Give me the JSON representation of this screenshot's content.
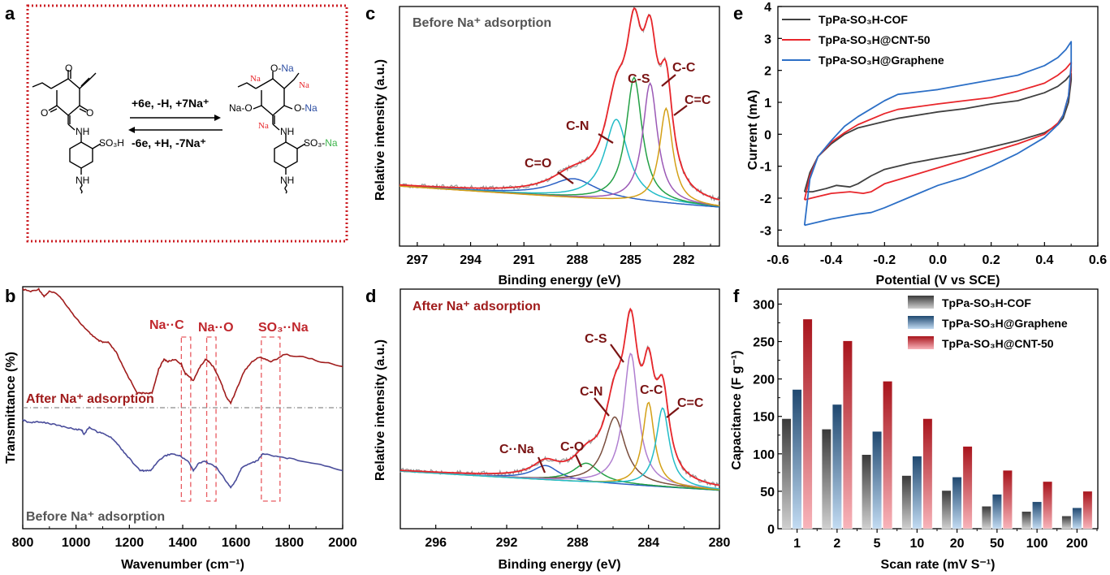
{
  "panels": {
    "a": {
      "letter": "a",
      "forward": "+6e, -H, +7Na⁺",
      "reverse": "-6e, +H, -7Na⁺",
      "left_labels": {
        "o_top": "O",
        "o_left": "O",
        "o_right": "O",
        "nh": "NH",
        "so3h": "SO₃H",
        "nh_bottom": "NH"
      },
      "right_labels": {
        "o_na_top": "O-Na",
        "na_left": "Na",
        "na_right": "Na",
        "na_o": "Na-O",
        "o_na": "O-Na",
        "na_mid": "Na",
        "nh": "NH",
        "so3": "SO₃-",
        "na_green": "Na",
        "nh_bottom": "NH"
      },
      "colors": {
        "red": "#e8262b",
        "blue": "#2e4fa3",
        "green": "#3cb44a",
        "frame": "#cc1f25"
      }
    },
    "b": {
      "letter": "b"
    },
    "c": {
      "letter": "c"
    },
    "d": {
      "letter": "d"
    },
    "e": {
      "letter": "e"
    },
    "f": {
      "letter": "f"
    }
  },
  "chart_data": [
    {
      "id": "b",
      "type": "line",
      "title": "",
      "xlabel": "Wavenumber (cm⁻¹)",
      "ylabel": "Transmittance (%)",
      "xlim": [
        800,
        2000
      ],
      "ylim": [
        0,
        1
      ],
      "xticks": [
        800,
        1000,
        1200,
        1400,
        1600,
        1800,
        2000
      ],
      "annotations": [
        "Na··C",
        "Na··O",
        "SO₃··Na",
        "After Na⁺ adsorption",
        "Before Na⁺ adsorption"
      ],
      "highlight_ranges": [
        [
          1395,
          1430
        ],
        [
          1490,
          1525
        ],
        [
          1695,
          1765
        ]
      ],
      "divider_y": 0.5,
      "series": [
        {
          "name": "After Na⁺ adsorption",
          "color": "#a01c1c",
          "x": [
            800,
            830,
            860,
            880,
            900,
            930,
            960,
            1000,
            1040,
            1060,
            1080,
            1100,
            1120,
            1150,
            1180,
            1200,
            1230,
            1250,
            1270,
            1285,
            1310,
            1330,
            1345,
            1370,
            1395,
            1410,
            1425,
            1440,
            1460,
            1485,
            1500,
            1520,
            1545,
            1565,
            1580,
            1600,
            1630,
            1660,
            1690,
            1710,
            1730,
            1750,
            1780,
            1850,
            1920,
            2000
          ],
          "y": [
            0.99,
            0.98,
            0.99,
            0.96,
            0.98,
            0.97,
            0.93,
            0.87,
            0.82,
            0.8,
            0.78,
            0.77,
            0.77,
            0.73,
            0.66,
            0.62,
            0.56,
            0.56,
            0.56,
            0.56,
            0.66,
            0.7,
            0.69,
            0.7,
            0.68,
            0.64,
            0.63,
            0.61,
            0.66,
            0.7,
            0.69,
            0.66,
            0.6,
            0.54,
            0.52,
            0.57,
            0.65,
            0.69,
            0.71,
            0.7,
            0.69,
            0.7,
            0.72,
            0.71,
            0.69,
            0.67
          ]
        },
        {
          "name": "Before Na⁺ adsorption",
          "color": "#4a4d9b",
          "x": [
            800,
            820,
            850,
            880,
            920,
            960,
            1000,
            1020,
            1030,
            1050,
            1080,
            1110,
            1140,
            1170,
            1200,
            1240,
            1260,
            1280,
            1300,
            1330,
            1360,
            1390,
            1420,
            1440,
            1460,
            1480,
            1500,
            1530,
            1560,
            1580,
            1600,
            1620,
            1650,
            1680,
            1700,
            1750,
            1800,
            1900,
            2000
          ],
          "y": [
            0.45,
            0.44,
            0.44,
            0.44,
            0.43,
            0.42,
            0.41,
            0.41,
            0.39,
            0.42,
            0.4,
            0.39,
            0.37,
            0.33,
            0.29,
            0.24,
            0.24,
            0.24,
            0.27,
            0.3,
            0.31,
            0.3,
            0.28,
            0.24,
            0.27,
            0.28,
            0.27,
            0.25,
            0.2,
            0.17,
            0.2,
            0.25,
            0.27,
            0.28,
            0.31,
            0.3,
            0.29,
            0.27,
            0.24
          ]
        }
      ]
    },
    {
      "id": "c",
      "type": "line",
      "title": "Before Na⁺ adsorption",
      "xlabel": "Binding energy (eV)",
      "ylabel": "Relative intensity (a.u.)",
      "xlim": [
        298,
        280
      ],
      "ylim": [
        0,
        1
      ],
      "xticks": [
        297,
        294,
        291,
        288,
        285,
        282
      ],
      "baseline": {
        "start": 0.25,
        "end": 0.16
      },
      "peaks": [
        {
          "name": "C=O",
          "center": 288.2,
          "height": 0.08,
          "width": 1.6,
          "color": "#2a5fc4"
        },
        {
          "name": "C-N",
          "center": 285.8,
          "height": 0.34,
          "width": 0.8,
          "color": "#23bcc8"
        },
        {
          "name": "C-S",
          "center": 284.8,
          "height": 0.52,
          "width": 0.55,
          "color": "#23a045"
        },
        {
          "name": "C-C",
          "center": 283.9,
          "height": 0.5,
          "width": 0.5,
          "color": "#9b59b6"
        },
        {
          "name": "C=C",
          "center": 283.0,
          "height": 0.4,
          "width": 0.45,
          "color": "#d4a017"
        }
      ],
      "envelope_color": "#e8262b",
      "raw_color": "#9a9a9a",
      "labels": [
        "C=O",
        "C-N",
        "C-S",
        "C-C",
        "C=C"
      ]
    },
    {
      "id": "d",
      "type": "line",
      "title": "After Na⁺ adsorption",
      "xlabel": "Binding energy (eV)",
      "ylabel": "Relative intensity (a.u.)",
      "xlim": [
        298,
        280
      ],
      "ylim": [
        0,
        1
      ],
      "xticks": [
        296,
        292,
        288,
        284,
        280
      ],
      "baseline": {
        "start": 0.24,
        "end": 0.16
      },
      "peaks": [
        {
          "name": "C··Na",
          "center": 289.8,
          "height": 0.06,
          "width": 0.9,
          "color": "#2a5fc4"
        },
        {
          "name": "C-O",
          "center": 287.5,
          "height": 0.08,
          "width": 0.9,
          "color": "#23a045"
        },
        {
          "name": "C-N",
          "center": 285.9,
          "height": 0.28,
          "width": 0.7,
          "color": "#7a4e3e"
        },
        {
          "name": "C-S",
          "center": 285.0,
          "height": 0.55,
          "width": 0.5,
          "color": "#b07fd0"
        },
        {
          "name": "C-C",
          "center": 284.0,
          "height": 0.35,
          "width": 0.4,
          "color": "#d4a017"
        },
        {
          "name": "C=C",
          "center": 283.2,
          "height": 0.33,
          "width": 0.45,
          "color": "#23bcc8"
        }
      ],
      "envelope_color": "#e8262b",
      "raw_color": "#9a9a9a",
      "labels": [
        "C··Na",
        "C-O",
        "C-N",
        "C-S",
        "C-C",
        "C=C"
      ]
    },
    {
      "id": "e",
      "type": "line",
      "title": "",
      "xlabel": "Potential (V vs SCE)",
      "ylabel": "Current (mA)",
      "xlim": [
        -0.6,
        0.6
      ],
      "ylim": [
        -3.5,
        4
      ],
      "xticks": [
        -0.6,
        -0.4,
        -0.2,
        0.0,
        0.2,
        0.4,
        0.6
      ],
      "yticks": [
        -3,
        -2,
        -1,
        0,
        1,
        2,
        3,
        4
      ],
      "legend": "top-left",
      "series": [
        {
          "name": "TpPa-SO₃H-COF",
          "color": "#404040",
          "x": [
            -0.5,
            -0.48,
            -0.45,
            -0.4,
            -0.35,
            -0.3,
            -0.2,
            -0.15,
            0.0,
            0.1,
            0.2,
            0.3,
            0.4,
            0.45,
            0.48,
            0.5,
            0.5,
            0.49,
            0.47,
            0.45,
            0.4,
            0.3,
            0.2,
            0.1,
            0.0,
            -0.1,
            -0.2,
            -0.25,
            -0.3,
            -0.33,
            -0.38,
            -0.42,
            -0.47,
            -0.5,
            -0.5
          ],
          "y": [
            -1.8,
            -1.2,
            -0.7,
            -0.3,
            0.0,
            0.2,
            0.4,
            0.5,
            0.7,
            0.8,
            0.95,
            1.05,
            1.3,
            1.5,
            1.7,
            1.9,
            1.7,
            1.0,
            0.5,
            0.3,
            0.05,
            -0.2,
            -0.4,
            -0.6,
            -0.75,
            -0.9,
            -1.1,
            -1.3,
            -1.55,
            -1.65,
            -1.6,
            -1.7,
            -1.8,
            -1.8,
            -1.8
          ]
        },
        {
          "name": "TpPa-SO₃H@CNT-50",
          "color": "#e8262b",
          "x": [
            -0.5,
            -0.48,
            -0.45,
            -0.4,
            -0.35,
            -0.3,
            -0.2,
            -0.15,
            0.0,
            0.1,
            0.2,
            0.3,
            0.4,
            0.45,
            0.48,
            0.5,
            0.5,
            0.49,
            0.47,
            0.45,
            0.4,
            0.3,
            0.2,
            0.1,
            0.0,
            -0.1,
            -0.2,
            -0.25,
            -0.28,
            -0.33,
            -0.4,
            -0.45,
            -0.5,
            -0.5
          ],
          "y": [
            -2.05,
            -1.3,
            -0.7,
            -0.25,
            0.05,
            0.3,
            0.65,
            0.78,
            0.95,
            1.05,
            1.15,
            1.35,
            1.6,
            1.85,
            2.05,
            2.25,
            2.0,
            1.2,
            0.6,
            0.35,
            0.0,
            -0.3,
            -0.55,
            -0.8,
            -1.05,
            -1.3,
            -1.55,
            -1.8,
            -1.85,
            -1.8,
            -1.85,
            -1.95,
            -2.05,
            -2.05
          ]
        },
        {
          "name": "TpPa-SO₃H@Graphene",
          "color": "#2c6fc6",
          "x": [
            -0.5,
            -0.48,
            -0.45,
            -0.4,
            -0.35,
            -0.3,
            -0.2,
            -0.15,
            0.0,
            0.1,
            0.2,
            0.3,
            0.4,
            0.45,
            0.48,
            0.5,
            0.5,
            0.49,
            0.47,
            0.45,
            0.4,
            0.3,
            0.2,
            0.1,
            0.0,
            -0.1,
            -0.2,
            -0.25,
            -0.3,
            -0.4,
            -0.45,
            -0.5,
            -0.5
          ],
          "y": [
            -2.85,
            -1.4,
            -0.7,
            -0.2,
            0.25,
            0.55,
            1.05,
            1.25,
            1.4,
            1.55,
            1.7,
            1.85,
            2.15,
            2.4,
            2.65,
            2.9,
            2.2,
            1.2,
            0.6,
            0.3,
            -0.1,
            -0.6,
            -1.0,
            -1.35,
            -1.6,
            -1.95,
            -2.3,
            -2.45,
            -2.5,
            -2.65,
            -2.75,
            -2.85,
            -2.85
          ]
        }
      ]
    },
    {
      "id": "f",
      "type": "bar",
      "title": "",
      "xlabel": "Scan rate (mV S⁻¹)",
      "ylabel": "Capacitance (F g⁻¹)",
      "ylim": [
        0,
        320
      ],
      "yticks": [
        0,
        50,
        100,
        150,
        200,
        250,
        300
      ],
      "categories": [
        "1",
        "2",
        "5",
        "10",
        "20",
        "50",
        "100",
        "200"
      ],
      "legend": "top-right",
      "series": [
        {
          "name": "TpPa-SO₃H-COF",
          "color_top": "#3a3a3a",
          "color_bottom": "#cfcfcf",
          "values": [
            147,
            133,
            99,
            71,
            51,
            30,
            23,
            17
          ]
        },
        {
          "name": "TpPa-SO₃H@Graphene",
          "color_top": "#1f4870",
          "color_bottom": "#c2dbf2",
          "values": [
            186,
            166,
            130,
            97,
            69,
            46,
            36,
            28
          ]
        },
        {
          "name": "TpPa-SO₃H@CNT-50",
          "color_top": "#a8141c",
          "color_bottom": "#f8b4ba",
          "values": [
            280,
            251,
            197,
            147,
            110,
            78,
            63,
            50
          ]
        }
      ]
    }
  ]
}
